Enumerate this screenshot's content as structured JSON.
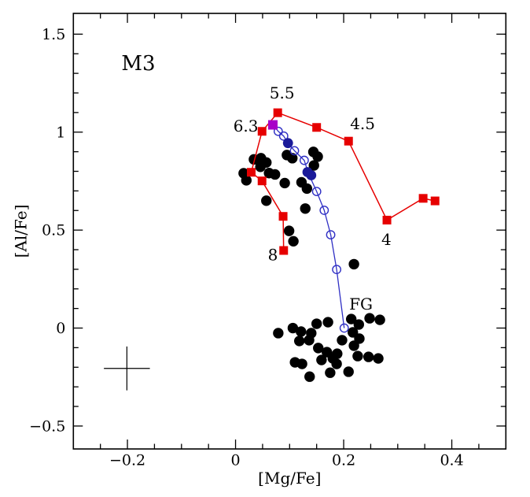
{
  "figure": {
    "cluster_label": "M3",
    "fg_label": "FG"
  },
  "chart_data": {
    "type": "scatter",
    "title": "M3",
    "xlabel": "[Mg/Fe]",
    "ylabel": "[Al/Fe]",
    "xlim": [
      -0.3,
      0.5
    ],
    "ylim": [
      -0.617,
      1.606
    ],
    "grid": false,
    "legend": "none",
    "x_major_ticks": [
      {
        "v": -0.2,
        "label": "−0.2"
      },
      {
        "v": 0.0,
        "label": "0"
      },
      {
        "v": 0.2,
        "label": "0.2"
      },
      {
        "v": 0.4,
        "label": "0.4"
      }
    ],
    "x_minor_step": 0.05,
    "y_major_ticks": [
      {
        "v": -0.5,
        "label": "−0.5"
      },
      {
        "v": 0.0,
        "label": "0"
      },
      {
        "v": 0.5,
        "label": "0.5"
      },
      {
        "v": 1.0,
        "label": "1"
      },
      {
        "v": 1.5,
        "label": "1.5"
      }
    ],
    "y_minor_step": 0.1,
    "colors": {
      "track_red": "#e60000",
      "dilution_blue": "#2f2fc4",
      "dilution_filled_blue": "#1a1a99",
      "extreme_magenta": "#a800c8",
      "stars_black": "#000000"
    },
    "series": [
      {
        "name": "second-generation-stars",
        "marker": "circle",
        "size": 13.4,
        "color": "#000000",
        "line": false,
        "points": [
          [
            0.015,
            0.79
          ],
          [
            0.02,
            0.754
          ],
          [
            0.034,
            0.861
          ],
          [
            0.047,
            0.867
          ],
          [
            0.057,
            0.845
          ],
          [
            0.046,
            0.823
          ],
          [
            0.062,
            0.791
          ],
          [
            0.073,
            0.784
          ],
          [
            0.091,
            0.74
          ],
          [
            0.057,
            0.65
          ],
          [
            0.095,
            0.883
          ],
          [
            0.105,
            0.867
          ],
          [
            0.144,
            0.899
          ],
          [
            0.152,
            0.875
          ],
          [
            0.145,
            0.83
          ],
          [
            0.122,
            0.744
          ],
          [
            0.132,
            0.712
          ],
          [
            0.129,
            0.61
          ],
          [
            0.099,
            0.496
          ],
          [
            0.107,
            0.443
          ],
          [
            0.219,
            0.326
          ]
        ]
      },
      {
        "name": "first-generation-stars",
        "marker": "circle",
        "size": 13.4,
        "color": "#000000",
        "line": false,
        "points": [
          [
            0.079,
            -0.026
          ],
          [
            0.106,
            0.0
          ],
          [
            0.121,
            -0.018
          ],
          [
            0.118,
            -0.066
          ],
          [
            0.14,
            -0.026
          ],
          [
            0.136,
            -0.062
          ],
          [
            0.15,
            0.022
          ],
          [
            0.171,
            0.03
          ],
          [
            0.214,
            0.046
          ],
          [
            0.228,
            0.018
          ],
          [
            0.217,
            -0.022
          ],
          [
            0.229,
            -0.054
          ],
          [
            0.248,
            0.05
          ],
          [
            0.267,
            0.042
          ],
          [
            0.197,
            -0.062
          ],
          [
            0.219,
            -0.09
          ],
          [
            0.153,
            -0.102
          ],
          [
            0.169,
            -0.123
          ],
          [
            0.159,
            -0.163
          ],
          [
            0.18,
            -0.155
          ],
          [
            0.188,
            -0.131
          ],
          [
            0.187,
            -0.183
          ],
          [
            0.226,
            -0.143
          ],
          [
            0.246,
            -0.147
          ],
          [
            0.264,
            -0.155
          ],
          [
            0.11,
            -0.175
          ],
          [
            0.123,
            -0.183
          ],
          [
            0.137,
            -0.248
          ],
          [
            0.175,
            -0.228
          ],
          [
            0.209,
            -0.223
          ]
        ]
      },
      {
        "name": "agb-yield-track",
        "marker": "square",
        "size": 11,
        "color": "#e60000",
        "line": true,
        "line_width": 1.5,
        "points": [
          [
            0.089,
            0.396
          ],
          [
            0.088,
            0.57
          ],
          [
            0.049,
            0.751
          ],
          [
            0.029,
            0.795
          ],
          [
            0.049,
            1.004
          ],
          [
            0.078,
            1.099
          ],
          [
            0.15,
            1.024
          ],
          [
            0.209,
            0.954
          ],
          [
            0.28,
            0.551
          ],
          [
            0.347,
            0.662
          ],
          [
            0.369,
            0.649
          ]
        ]
      },
      {
        "name": "dilution-curve-line",
        "marker": "none",
        "size": 0,
        "color": "#2f2fc4",
        "line": true,
        "line_width": 1.3,
        "points": [
          [
            0.069,
            1.037
          ],
          [
            0.079,
            1.004
          ],
          [
            0.089,
            0.98
          ],
          [
            0.097,
            0.944
          ],
          [
            0.109,
            0.905
          ],
          [
            0.127,
            0.856
          ],
          [
            0.135,
            0.787
          ],
          [
            0.15,
            0.697
          ],
          [
            0.164,
            0.601
          ],
          [
            0.176,
            0.476
          ],
          [
            0.187,
            0.299
          ],
          [
            0.201,
            0.0
          ]
        ]
      },
      {
        "name": "dilution-mixture-steps",
        "marker": "open-circle",
        "size": 10.4,
        "color": "#2f2fc4",
        "line": false,
        "points": [
          [
            0.079,
            1.004
          ],
          [
            0.089,
            0.98
          ],
          [
            0.109,
            0.905
          ],
          [
            0.127,
            0.856
          ],
          [
            0.15,
            0.697
          ],
          [
            0.164,
            0.601
          ],
          [
            0.176,
            0.476
          ],
          [
            0.187,
            0.299
          ],
          [
            0.201,
            0.0
          ]
        ]
      },
      {
        "name": "extreme-composition-marker",
        "marker": "square",
        "size": 12,
        "color": "#a800c8",
        "line": false,
        "points": [
          [
            0.069,
            1.037
          ]
        ]
      },
      {
        "name": "dilution-highlight-points",
        "marker": "circle",
        "size": 12.8,
        "color": "#1a1a99",
        "line": false,
        "points": [
          [
            0.097,
            0.944
          ],
          [
            0.133,
            0.796
          ],
          [
            0.14,
            0.78
          ]
        ]
      }
    ],
    "mass_labels": [
      {
        "name": "mass-label-5-5",
        "text": "5.5",
        "x": 0.086,
        "y": 1.198,
        "color": "#e60000",
        "size": 20
      },
      {
        "name": "mass-label-6-3",
        "text": "6.3",
        "x": 0.019,
        "y": 1.03,
        "color": "#e60000",
        "size": 20
      },
      {
        "name": "mass-label-4-5",
        "text": "4.5",
        "x": 0.235,
        "y": 1.041,
        "color": "#e60000",
        "size": 20
      },
      {
        "name": "mass-label-4",
        "text": "4",
        "x": 0.279,
        "y": 0.45,
        "color": "#e60000",
        "size": 20
      },
      {
        "name": "mass-label-8",
        "text": "8",
        "x": 0.069,
        "y": 0.372,
        "color": "#e60000",
        "size": 20
      }
    ],
    "error_cross": {
      "x": -0.201,
      "y": -0.206,
      "xerr": 0.0425,
      "yerr": 0.112
    }
  }
}
